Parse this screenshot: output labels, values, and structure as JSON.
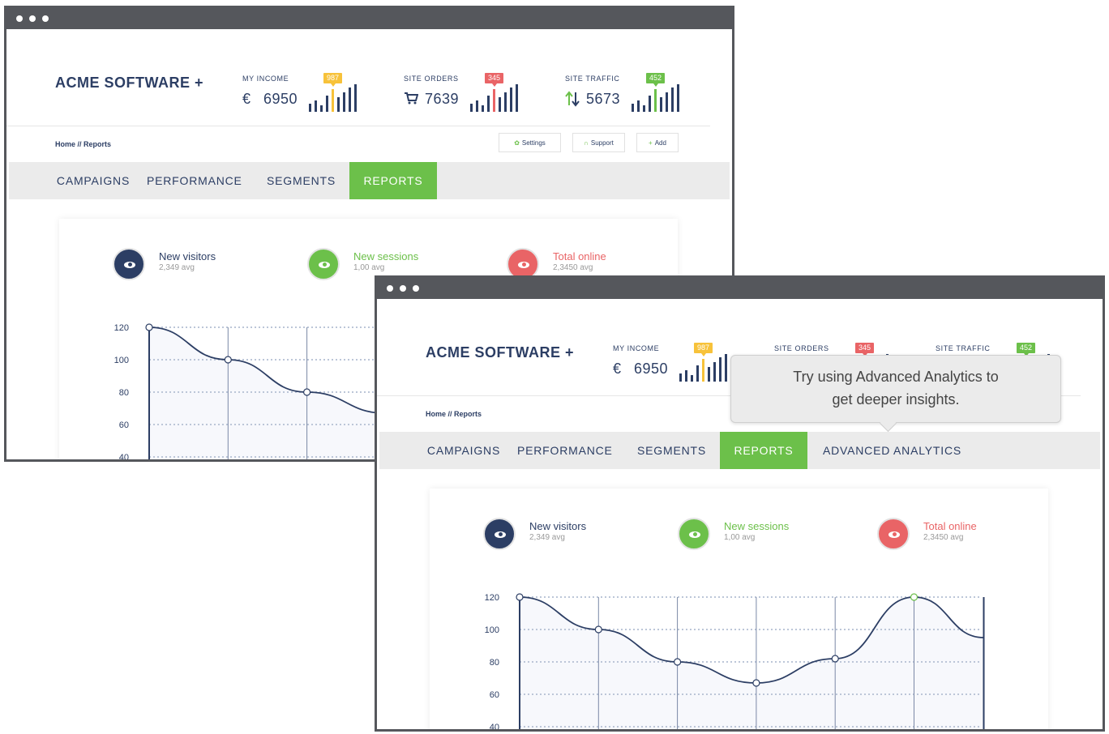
{
  "window_back": {
    "brand": "ACME SOFTWARE +",
    "stats": [
      {
        "label": "MY INCOME",
        "icon": "euro-icon",
        "icon_glyph": "€",
        "value": "6950",
        "badge": "987",
        "badge_color": "#f7c23a"
      },
      {
        "label": "SITE ORDERS",
        "icon": "cart-icon",
        "icon_glyph": "🛒",
        "value": "7639",
        "badge": "345",
        "badge_color": "#e96466"
      },
      {
        "label": "SITE TRAFFIC",
        "icon": "arrows-updown-icon",
        "icon_glyph": "⇅",
        "value": "5673",
        "badge": "452",
        "badge_color": "#6cc04a"
      }
    ],
    "breadcrumb": "Home // Reports",
    "buttons": [
      {
        "label": "Settings",
        "icon": "gear-icon",
        "glyph": "✿"
      },
      {
        "label": "Support",
        "icon": "headset-icon",
        "glyph": "∩"
      },
      {
        "label": "Add",
        "icon": "plus-icon",
        "glyph": "+"
      }
    ],
    "tabs": [
      "CAMPAIGNS",
      "PERFORMANCE",
      "SEGMENTS",
      "REPORTS"
    ],
    "active_tab": "REPORTS"
  },
  "window_front": {
    "brand": "ACME SOFTWARE +",
    "stats": [
      {
        "label": "MY INCOME",
        "icon": "euro-icon",
        "icon_glyph": "€",
        "value": "6950",
        "badge": "987",
        "badge_color": "#f7c23a"
      },
      {
        "label": "SITE ORDERS",
        "badge": "345",
        "badge_color": "#e96466"
      },
      {
        "label": "SITE TRAFFIC",
        "badge": "452",
        "badge_color": "#6cc04a"
      }
    ],
    "breadcrumb": "Home // Reports",
    "tabs": [
      "CAMPAIGNS",
      "PERFORMANCE",
      "SEGMENTS",
      "REPORTS",
      "ADVANCED ANALYTICS"
    ],
    "active_tab": "REPORTS",
    "tooltip": {
      "line1": "Try using Advanced Analytics to",
      "line2": "get deeper insights."
    }
  },
  "legend": [
    {
      "name": "New visitors",
      "avg": "2,349 avg",
      "color": "#2c3e64",
      "icon": "eye-icon"
    },
    {
      "name": "New sessions",
      "avg": "1,00 avg",
      "color": "#6cc04a",
      "icon": "eye-icon"
    },
    {
      "name": "Total online",
      "avg": "2,3450 avg",
      "color": "#e96466",
      "icon": "eye-icon"
    }
  ],
  "colors": {
    "navy": "#2c3e64",
    "green": "#6cc04a",
    "red": "#e96466",
    "yellow": "#f7c23a",
    "chrome": "#55575c"
  },
  "chart_data": {
    "type": "line",
    "y_ticks": [
      "120",
      "100",
      "80",
      "60",
      "40"
    ],
    "ylim": [
      40,
      120
    ],
    "grid": true,
    "points": [
      120,
      100,
      80,
      67,
      82,
      120,
      95
    ],
    "highlight_index": 5
  }
}
